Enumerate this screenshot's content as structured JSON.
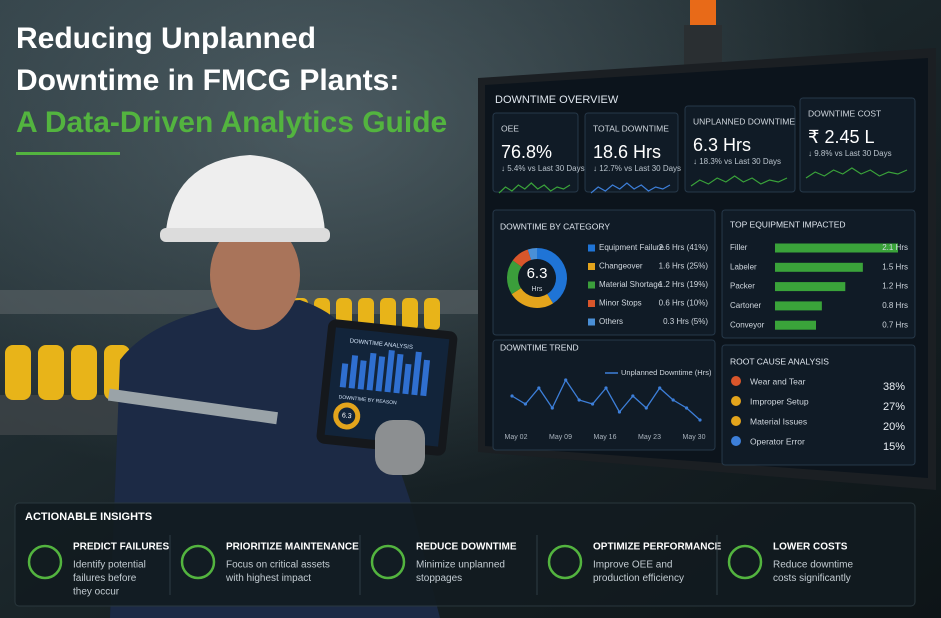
{
  "header": {
    "title_lines": [
      "Reducing Unplanned",
      "Downtime in FMCG Plants:",
      "A Data-Driven Analytics Guide"
    ]
  },
  "tablet": {
    "title": "DOWNTIME ANALYSIS",
    "subtitle": "DOWNTIME BY REASON",
    "center_value": "6.3"
  },
  "dashboard": {
    "title": "DOWNTIME OVERVIEW",
    "kpis": [
      {
        "label": "OEE",
        "value": "76.8%",
        "change": "↓ 5.4% vs Last 30 Days"
      },
      {
        "label": "TOTAL DOWNTIME",
        "value": "18.6 Hrs",
        "change": "↓ 12.7% vs Last 30 Days"
      },
      {
        "label": "UNPLANNED DOWNTIME",
        "value": "6.3 Hrs",
        "change": "↓ 18.3% vs Last 30 Days"
      },
      {
        "label": "DOWNTIME COST",
        "value": "₹ 2.45 L",
        "change": "↓ 9.8% vs Last 30 Days"
      }
    ],
    "category_chart": {
      "type": "pie",
      "title": "DOWNTIME BY CATEGORY",
      "center_value": "6.3",
      "center_unit": "Hrs",
      "categories": [
        "Equipment Failure",
        "Changeover",
        "Material Shortage",
        "Minor Stops",
        "Others"
      ],
      "values": [
        41,
        25,
        19,
        10,
        5
      ],
      "value_labels": [
        "2.6 Hrs (41%)",
        "1.6 Hrs (25%)",
        "1.2 Hrs (19%)",
        "0.6 Hrs (10%)",
        "0.3 Hrs (5%)"
      ],
      "colors": [
        "#1f74d6",
        "#e3a41c",
        "#3b9e3b",
        "#d9562b",
        "#4a8fd6"
      ]
    },
    "equipment_chart": {
      "type": "bar",
      "title": "TOP EQUIPMENT IMPACTED",
      "categories": [
        "Filler",
        "Labeler",
        "Packer",
        "Cartoner",
        "Conveyor"
      ],
      "values": [
        2.1,
        1.5,
        1.2,
        0.8,
        0.7
      ],
      "value_labels": [
        "2.1 Hrs",
        "1.5 Hrs",
        "1.2 Hrs",
        "0.8 Hrs",
        "0.7 Hrs"
      ],
      "color": "#3aa33a"
    },
    "trend_chart": {
      "type": "line",
      "title": "DOWNTIME TREND",
      "series": [
        {
          "name": "Unplanned Downtime (Hrs)",
          "color": "#3d7fd9",
          "values": [
            14,
            13,
            15,
            12.5,
            16,
            13.5,
            13,
            15,
            12,
            14,
            12.5,
            15,
            13.5,
            12.5,
            11
          ]
        }
      ],
      "xtick_labels": [
        "May 02",
        "May 09",
        "May 16",
        "May 23",
        "May 30"
      ]
    },
    "root_cause": {
      "title": "ROOT CAUSE ANALYSIS",
      "items": [
        {
          "label": "Wear and Tear",
          "share": "38%"
        },
        {
          "label": "Improper Setup",
          "share": "27%"
        },
        {
          "label": "Material Issues",
          "share": "20%"
        },
        {
          "label": "Operator Error",
          "share": "15%"
        }
      ]
    }
  },
  "insights": {
    "title": "ACTIONABLE INSIGHTS",
    "items": [
      {
        "title": "PREDICT FAILURES",
        "desc": [
          "Identify potential",
          "failures before",
          "they occur"
        ]
      },
      {
        "title": "PRIORITIZE MAINTENANCE",
        "desc": [
          "Focus on critical assets",
          "with highest impact"
        ]
      },
      {
        "title": "REDUCE DOWNTIME",
        "desc": [
          "Minimize unplanned",
          "stoppages"
        ]
      },
      {
        "title": "OPTIMIZE PERFORMANCE",
        "desc": [
          "Improve OEE and",
          "production efficiency"
        ]
      },
      {
        "title": "LOWER COSTS",
        "desc": [
          "Reduce downtime",
          "costs significantly"
        ]
      }
    ]
  }
}
